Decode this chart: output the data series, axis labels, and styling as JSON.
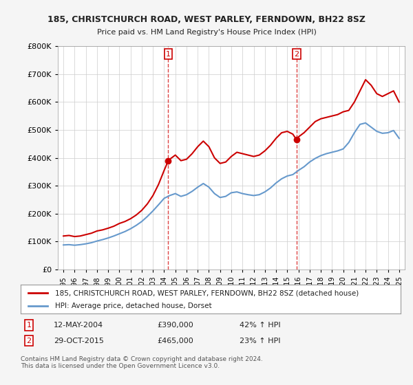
{
  "title": "185, CHRISTCHURCH ROAD, WEST PARLEY, FERNDOWN, BH22 8SZ",
  "subtitle": "Price paid vs. HM Land Registry's House Price Index (HPI)",
  "footer": "Contains HM Land Registry data © Crown copyright and database right 2024.\nThis data is licensed under the Open Government Licence v3.0.",
  "legend_line1": "185, CHRISTCHURCH ROAD, WEST PARLEY, FERNDOWN, BH22 8SZ (detached house)",
  "legend_line2": "HPI: Average price, detached house, Dorset",
  "sale1_label": "1",
  "sale1_date": "12-MAY-2004",
  "sale1_price": "£390,000",
  "sale1_hpi": "42% ↑ HPI",
  "sale1_x": 2004.37,
  "sale1_y": 390000,
  "sale2_label": "2",
  "sale2_date": "29-OCT-2015",
  "sale2_price": "£465,000",
  "sale2_hpi": "23% ↑ HPI",
  "sale2_x": 2015.83,
  "sale2_y": 465000,
  "red_color": "#cc0000",
  "blue_color": "#6699cc",
  "dashed_red": "#dd4444",
  "background_color": "#f5f5f5",
  "plot_bg": "#ffffff",
  "ylim": [
    0,
    800000
  ],
  "xlim": [
    1994.5,
    2025.5
  ],
  "red_x": [
    1995,
    1995.5,
    1996,
    1996.5,
    1997,
    1997.5,
    1998,
    1998.5,
    1999,
    1999.5,
    2000,
    2000.5,
    2001,
    2001.5,
    2002,
    2002.5,
    2003,
    2003.5,
    2004,
    2004.37,
    2004.5,
    2005,
    2005.5,
    2006,
    2006.5,
    2007,
    2007.5,
    2008,
    2008.5,
    2009,
    2009.5,
    2010,
    2010.5,
    2011,
    2011.5,
    2012,
    2012.5,
    2013,
    2013.5,
    2014,
    2014.5,
    2015,
    2015.5,
    2015.83,
    2016,
    2016.5,
    2017,
    2017.5,
    2018,
    2018.5,
    2019,
    2019.5,
    2020,
    2020.5,
    2021,
    2021.5,
    2022,
    2022.5,
    2023,
    2023.5,
    2024,
    2024.5,
    2025
  ],
  "red_y": [
    120000,
    122000,
    118000,
    120000,
    125000,
    130000,
    138000,
    142000,
    148000,
    155000,
    165000,
    172000,
    182000,
    195000,
    212000,
    235000,
    265000,
    305000,
    355000,
    390000,
    395000,
    410000,
    390000,
    395000,
    415000,
    440000,
    460000,
    440000,
    400000,
    380000,
    385000,
    405000,
    420000,
    415000,
    410000,
    405000,
    410000,
    425000,
    445000,
    470000,
    490000,
    495000,
    485000,
    465000,
    475000,
    490000,
    510000,
    530000,
    540000,
    545000,
    550000,
    555000,
    565000,
    570000,
    600000,
    640000,
    680000,
    660000,
    630000,
    620000,
    630000,
    640000,
    600000
  ],
  "blue_x": [
    1995,
    1995.5,
    1996,
    1996.5,
    1997,
    1997.5,
    1998,
    1998.5,
    1999,
    1999.5,
    2000,
    2000.5,
    2001,
    2001.5,
    2002,
    2002.5,
    2003,
    2003.5,
    2004,
    2004.5,
    2005,
    2005.5,
    2006,
    2006.5,
    2007,
    2007.5,
    2008,
    2008.5,
    2009,
    2009.5,
    2010,
    2010.5,
    2011,
    2011.5,
    2012,
    2012.5,
    2013,
    2013.5,
    2014,
    2014.5,
    2015,
    2015.5,
    2016,
    2016.5,
    2017,
    2017.5,
    2018,
    2018.5,
    2019,
    2019.5,
    2020,
    2020.5,
    2021,
    2021.5,
    2022,
    2022.5,
    2023,
    2023.5,
    2024,
    2024.5,
    2025
  ],
  "blue_y": [
    88000,
    89000,
    87000,
    89000,
    92000,
    96000,
    102000,
    107000,
    113000,
    120000,
    128000,
    136000,
    146000,
    158000,
    172000,
    190000,
    210000,
    232000,
    255000,
    265000,
    272000,
    262000,
    268000,
    280000,
    295000,
    308000,
    295000,
    272000,
    258000,
    262000,
    275000,
    278000,
    272000,
    268000,
    265000,
    268000,
    278000,
    292000,
    310000,
    325000,
    335000,
    340000,
    355000,
    368000,
    385000,
    398000,
    408000,
    415000,
    420000,
    425000,
    432000,
    455000,
    490000,
    520000,
    525000,
    510000,
    495000,
    488000,
    490000,
    498000,
    470000
  ]
}
